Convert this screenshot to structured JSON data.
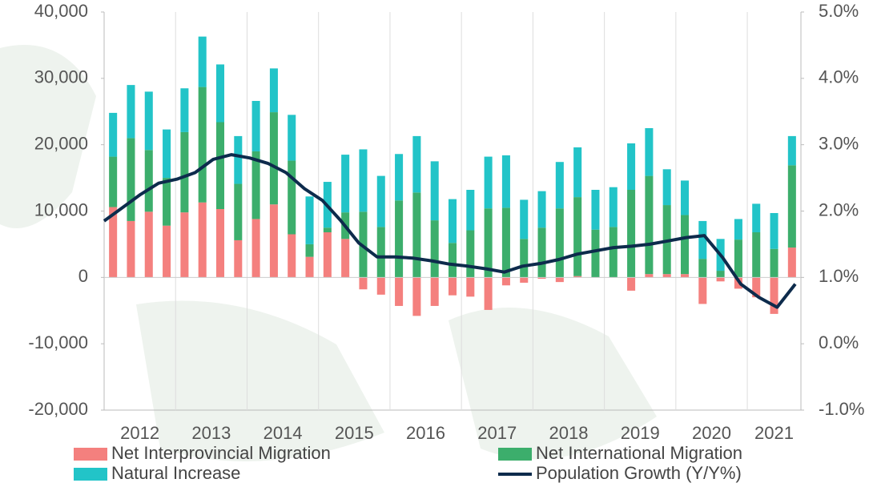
{
  "chart_data": {
    "type": "stacked_bar_line",
    "categories": [
      "2012",
      null,
      null,
      null,
      "2013",
      null,
      null,
      null,
      "2014",
      null,
      null,
      null,
      "2015",
      null,
      null,
      null,
      "2016",
      null,
      null,
      null,
      "2017",
      null,
      null,
      null,
      "2018",
      null,
      null,
      null,
      "2019",
      null,
      null,
      null,
      "2020",
      null,
      null,
      null,
      "2021",
      null,
      null
    ],
    "series": [
      {
        "name": "Net Interprovincial Migration",
        "color": "#f4807e",
        "values": [
          10600,
          8500,
          9900,
          7800,
          9800,
          11300,
          10300,
          5600,
          8800,
          11000,
          6500,
          3100,
          6800,
          5800,
          -1800,
          -2600,
          -4300,
          -5800,
          -4300,
          -2700,
          -2900,
          -4900,
          -1200,
          -800,
          -200,
          -700,
          200,
          0,
          0,
          -2000,
          500,
          500,
          500,
          -4000,
          -600,
          -1700,
          -3000,
          -5500,
          4500
        ]
      },
      {
        "name": "Net International Migration",
        "color": "#3cae6c",
        "values": [
          7600,
          12500,
          9300,
          7200,
          12100,
          17400,
          13100,
          8500,
          10200,
          13900,
          11100,
          1900,
          700,
          4000,
          9900,
          7600,
          11600,
          12800,
          8600,
          5200,
          7100,
          10400,
          10500,
          5800,
          7500,
          10400,
          11900,
          7200,
          7600,
          13200,
          14800,
          10400,
          8900,
          2800,
          1000,
          5700,
          6800,
          4300,
          12400
        ]
      },
      {
        "name": "Natural Increase",
        "color": "#22c4c8",
        "values": [
          6600,
          8000,
          8800,
          7300,
          6600,
          7600,
          8700,
          7200,
          7600,
          6600,
          6900,
          7200,
          6900,
          8700,
          9400,
          7700,
          7000,
          8500,
          8900,
          6600,
          6100,
          7800,
          7900,
          5900,
          5500,
          7000,
          7500,
          6000,
          6000,
          7000,
          7200,
          5400,
          5200,
          5700,
          4800,
          3100,
          4300,
          5400,
          4400
        ]
      },
      {
        "name": "Population Growth (Y/Y%)",
        "color": "#0d2b4c",
        "type": "line",
        "axis": "y2",
        "values": [
          1.85,
          2.05,
          2.25,
          2.42,
          2.48,
          2.58,
          2.78,
          2.85,
          2.8,
          2.72,
          2.58,
          2.34,
          2.16,
          1.86,
          1.52,
          1.31,
          1.31,
          1.29,
          1.25,
          1.2,
          1.17,
          1.13,
          1.08,
          1.17,
          1.21,
          1.27,
          1.35,
          1.4,
          1.45,
          1.47,
          1.5,
          1.55,
          1.6,
          1.63,
          1.3,
          0.9,
          0.7,
          0.55,
          0.9
        ]
      }
    ],
    "ylim": [
      -20000,
      40000
    ],
    "yticks": [
      {
        "value": -20000,
        "label": "-20,000"
      },
      {
        "value": -10000,
        "label": "-10,000"
      },
      0,
      {
        "value": 10000,
        "label": "10,000"
      },
      {
        "value": 20000,
        "label": "20,000"
      },
      {
        "value": 30000,
        "label": "30,000"
      },
      {
        "value": 40000,
        "label": "40,000"
      }
    ],
    "y2lim": [
      -1,
      5
    ],
    "y2ticks": [
      {
        "value": -1,
        "label": "-1.0%"
      },
      {
        "value": 0,
        "label": "0.0%"
      },
      {
        "value": 1,
        "label": "1.0%"
      },
      {
        "value": 2,
        "label": "2.0%"
      },
      {
        "value": 3,
        "label": "3.0%"
      },
      {
        "value": 4,
        "label": "4.0%"
      },
      {
        "value": 5,
        "label": "5.0%"
      }
    ],
    "legend": "bottom"
  }
}
